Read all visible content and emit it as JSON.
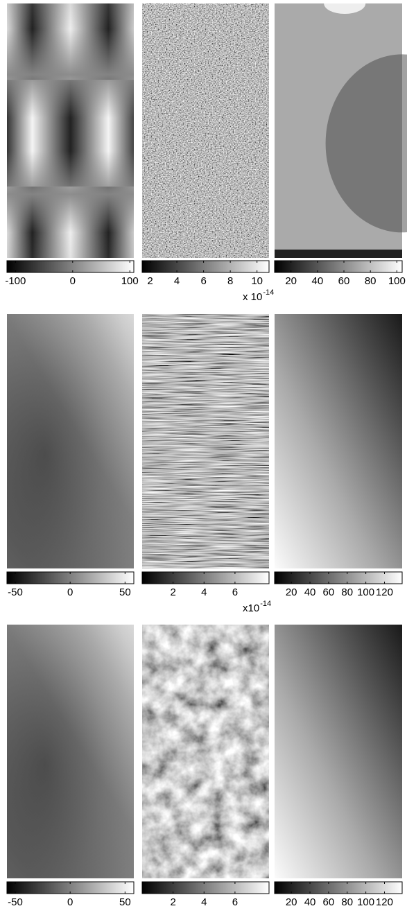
{
  "chart_data": [
    {
      "type": "heatmap",
      "clim": [
        -115,
        107
      ],
      "cticks": [
        -100,
        0,
        100
      ]
    },
    {
      "type": "heatmap",
      "clim": [
        1.4,
        10.9
      ],
      "cticks": [
        2,
        4,
        6,
        8,
        10
      ],
      "scale_label": "x 10",
      "scale_exponent": "-14"
    },
    {
      "type": "heatmap",
      "clim": [
        7.6,
        104
      ],
      "cticks": [
        20,
        40,
        60,
        80,
        100
      ]
    },
    {
      "type": "heatmap",
      "clim": [
        -57.6,
        58
      ],
      "cticks": [
        -50,
        0,
        50
      ]
    },
    {
      "type": "heatmap",
      "clim": [
        0,
        8.2
      ],
      "cticks": [
        2,
        4,
        6
      ],
      "scale_label": "x10",
      "scale_exponent": "-14"
    },
    {
      "type": "heatmap",
      "clim": [
        2,
        139
      ],
      "cticks": [
        20,
        40,
        60,
        80,
        100,
        120
      ]
    },
    {
      "type": "heatmap",
      "clim": [
        -57.6,
        58
      ],
      "cticks": [
        -50,
        0,
        50
      ]
    },
    {
      "type": "heatmap",
      "clim": [
        0,
        8.2
      ],
      "cticks": [
        2,
        4,
        6
      ]
    },
    {
      "type": "heatmap",
      "clim": [
        2,
        139
      ],
      "cticks": [
        20,
        40,
        60,
        80,
        100,
        120
      ]
    }
  ]
}
